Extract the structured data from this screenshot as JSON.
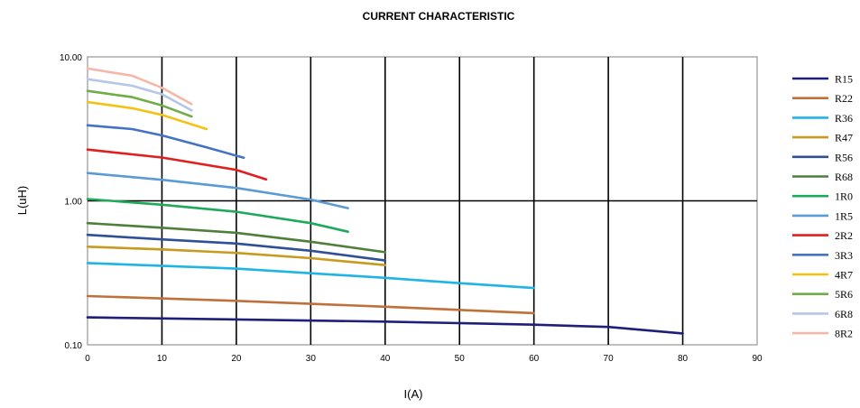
{
  "chart_data": {
    "type": "line",
    "title": "CURRENT CHARACTERISTIC",
    "xlabel": "I(A)",
    "ylabel": "L(uH)",
    "xlim": [
      0,
      90
    ],
    "ylim": [
      0.1,
      10
    ],
    "yscale": "log",
    "x_ticks": [
      "0",
      "10",
      "20",
      "30",
      "40",
      "50",
      "60",
      "70",
      "80",
      "90"
    ],
    "y_ticks": [
      {
        "value": 0.1,
        "label": "0.10"
      },
      {
        "value": 1,
        "label": "1.00"
      },
      {
        "value": 10,
        "label": "10.00"
      }
    ],
    "grid": true,
    "legend_position": "right",
    "series": [
      {
        "name": "R15",
        "color": "#1f1f7a",
        "points": [
          [
            0,
            0.155
          ],
          [
            20,
            0.15
          ],
          [
            40,
            0.145
          ],
          [
            60,
            0.138
          ],
          [
            70,
            0.133
          ],
          [
            80,
            0.12
          ]
        ]
      },
      {
        "name": "R22",
        "color": "#c0703a",
        "points": [
          [
            0,
            0.218
          ],
          [
            20,
            0.202
          ],
          [
            40,
            0.184
          ],
          [
            60,
            0.166
          ]
        ]
      },
      {
        "name": "R36",
        "color": "#1fb4e6",
        "points": [
          [
            0,
            0.37
          ],
          [
            20,
            0.338
          ],
          [
            40,
            0.292
          ],
          [
            50,
            0.268
          ],
          [
            60,
            0.248
          ]
        ]
      },
      {
        "name": "R47",
        "color": "#c89a1e",
        "points": [
          [
            0,
            0.48
          ],
          [
            10,
            0.46
          ],
          [
            20,
            0.435
          ],
          [
            30,
            0.4
          ],
          [
            40,
            0.358
          ]
        ]
      },
      {
        "name": "R56",
        "color": "#2f4f96",
        "points": [
          [
            0,
            0.58
          ],
          [
            10,
            0.54
          ],
          [
            20,
            0.505
          ],
          [
            30,
            0.45
          ],
          [
            40,
            0.385
          ]
        ]
      },
      {
        "name": "R68",
        "color": "#4f7f3a",
        "points": [
          [
            0,
            0.7
          ],
          [
            10,
            0.65
          ],
          [
            20,
            0.6
          ],
          [
            30,
            0.52
          ],
          [
            40,
            0.44
          ]
        ]
      },
      {
        "name": "1R0",
        "color": "#1fa95a",
        "points": [
          [
            0,
            1.03
          ],
          [
            10,
            0.94
          ],
          [
            20,
            0.84
          ],
          [
            30,
            0.7
          ],
          [
            35,
            0.61
          ]
        ]
      },
      {
        "name": "1R5",
        "color": "#5b9bd5",
        "points": [
          [
            0,
            1.56
          ],
          [
            10,
            1.4
          ],
          [
            20,
            1.23
          ],
          [
            30,
            1.02
          ],
          [
            35,
            0.89
          ]
        ]
      },
      {
        "name": "2R2",
        "color": "#e01f1f",
        "points": [
          [
            0,
            2.27
          ],
          [
            10,
            2.0
          ],
          [
            20,
            1.64
          ],
          [
            24,
            1.41
          ]
        ]
      },
      {
        "name": "3R3",
        "color": "#4472c4",
        "points": [
          [
            0,
            3.35
          ],
          [
            6,
            3.15
          ],
          [
            10,
            2.85
          ],
          [
            16,
            2.35
          ],
          [
            21,
            1.99
          ]
        ]
      },
      {
        "name": "4R7",
        "color": "#f2c314",
        "points": [
          [
            0,
            4.85
          ],
          [
            6,
            4.4
          ],
          [
            10,
            3.95
          ],
          [
            16,
            3.15
          ]
        ]
      },
      {
        "name": "5R6",
        "color": "#70ad47",
        "points": [
          [
            0,
            5.8
          ],
          [
            6,
            5.25
          ],
          [
            10,
            4.6
          ],
          [
            14,
            3.85
          ]
        ]
      },
      {
        "name": "6R8",
        "color": "#b4c7e7",
        "points": [
          [
            0,
            7.0
          ],
          [
            6,
            6.3
          ],
          [
            10,
            5.5
          ],
          [
            14,
            4.25
          ]
        ]
      },
      {
        "name": "8R2",
        "color": "#f4b8a8",
        "points": [
          [
            0,
            8.3
          ],
          [
            6,
            7.4
          ],
          [
            10,
            6.1
          ],
          [
            14,
            4.7
          ]
        ]
      }
    ]
  }
}
